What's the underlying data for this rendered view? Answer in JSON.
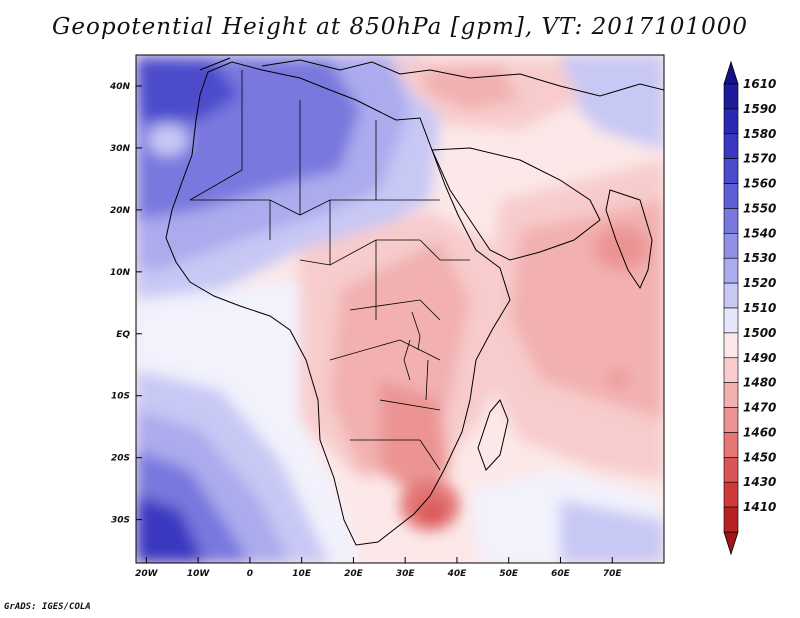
{
  "title": "Geopotential Height at 850hPa [gpm], VT: 2017101000",
  "credit": "GrADS: IGES/COLA",
  "map": {
    "lon_range": [
      -22,
      80
    ],
    "lat_range": [
      -37,
      45
    ],
    "lon_ticks": [
      {
        "value": -20,
        "label": "20W"
      },
      {
        "value": -10,
        "label": "10W"
      },
      {
        "value": 0,
        "label": "0"
      },
      {
        "value": 10,
        "label": "10E"
      },
      {
        "value": 20,
        "label": "20E"
      },
      {
        "value": 30,
        "label": "30E"
      },
      {
        "value": 40,
        "label": "40E"
      },
      {
        "value": 50,
        "label": "50E"
      },
      {
        "value": 60,
        "label": "60E"
      },
      {
        "value": 70,
        "label": "70E"
      }
    ],
    "lat_ticks": [
      {
        "value": 40,
        "label": "40N"
      },
      {
        "value": 30,
        "label": "30N"
      },
      {
        "value": 20,
        "label": "20N"
      },
      {
        "value": 10,
        "label": "10N"
      },
      {
        "value": 0,
        "label": "EQ"
      },
      {
        "value": -10,
        "label": "10S"
      },
      {
        "value": -20,
        "label": "20S"
      },
      {
        "value": -30,
        "label": "30S"
      }
    ]
  },
  "colorbar": {
    "levels": [
      {
        "label": "1610",
        "color": "#1e1a9c"
      },
      {
        "label": "1590",
        "color": "#2a27b0"
      },
      {
        "label": "1580",
        "color": "#3a38c0"
      },
      {
        "label": "1570",
        "color": "#4b4bcc"
      },
      {
        "label": "1560",
        "color": "#6060d6"
      },
      {
        "label": "1550",
        "color": "#7878de"
      },
      {
        "label": "1540",
        "color": "#9090e6"
      },
      {
        "label": "1530",
        "color": "#ababee"
      },
      {
        "label": "1520",
        "color": "#c8c8f5"
      },
      {
        "label": "1510",
        "color": "#e6e6fb"
      },
      {
        "label": "1500",
        "color": "#fce8e8"
      },
      {
        "label": "1490",
        "color": "#f8cccc"
      },
      {
        "label": "1480",
        "color": "#f2b0b0"
      },
      {
        "label": "1470",
        "color": "#ec9494"
      },
      {
        "label": "1460",
        "color": "#e47676"
      },
      {
        "label": "1450",
        "color": "#da5656"
      },
      {
        "label": "1430",
        "color": "#cc3a3a"
      },
      {
        "label": "1410",
        "color": "#b82222"
      }
    ],
    "top_color": "#14118a",
    "bottom_color": "#a01515"
  },
  "field_colors": {
    "deep_blue": "#3a38c0",
    "mid_blue": "#7878de",
    "light_blue": "#ababee",
    "pale_blue": "#c8c8f5",
    "near_white": "#f2f2fd",
    "pale_red": "#fce8e8",
    "light_red": "#f8cccc",
    "mid_red": "#f2b0b0",
    "deep_red": "#ec9494",
    "strong_red": "#da5656"
  }
}
